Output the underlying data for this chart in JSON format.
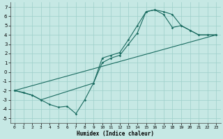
{
  "title": "",
  "xlabel": "Humidex (Indice chaleur)",
  "xlim": [
    -0.5,
    23.5
  ],
  "ylim": [
    -5.5,
    7.5
  ],
  "xticks": [
    0,
    1,
    2,
    3,
    4,
    5,
    6,
    7,
    8,
    9,
    10,
    11,
    12,
    13,
    14,
    15,
    16,
    17,
    18,
    19,
    20,
    21,
    22,
    23
  ],
  "yticks": [
    -5,
    -4,
    -3,
    -2,
    -1,
    0,
    1,
    2,
    3,
    4,
    5,
    6,
    7
  ],
  "bg_color": "#c6e8e4",
  "grid_color": "#9dcfca",
  "line_color": "#1a6b60",
  "line1_x": [
    0,
    1,
    2,
    3,
    4,
    5,
    6,
    7,
    8,
    9,
    10,
    11,
    12,
    13,
    14,
    15,
    16,
    17,
    18,
    19,
    20,
    21,
    22,
    23
  ],
  "line1_y": [
    -2.0,
    -2.2,
    -2.5,
    -3.0,
    -3.5,
    -3.8,
    -3.7,
    -4.5,
    -3.0,
    -1.2,
    1.5,
    1.8,
    2.1,
    3.5,
    5.0,
    6.5,
    6.7,
    6.5,
    6.2,
    5.0,
    4.5,
    4.0,
    4.0,
    4.0
  ],
  "line2_x": [
    0,
    2,
    3,
    9,
    10,
    11,
    12,
    13,
    14,
    15,
    16,
    17,
    18,
    19,
    20,
    21,
    22,
    23
  ],
  "line2_y": [
    -2.0,
    -2.5,
    -3.0,
    -1.2,
    1.0,
    1.5,
    1.8,
    3.0,
    4.2,
    6.5,
    6.7,
    6.2,
    4.8,
    5.0,
    4.5,
    4.0,
    4.0,
    4.0
  ],
  "line3_x": [
    0,
    23
  ],
  "line3_y": [
    -2.0,
    4.0
  ]
}
